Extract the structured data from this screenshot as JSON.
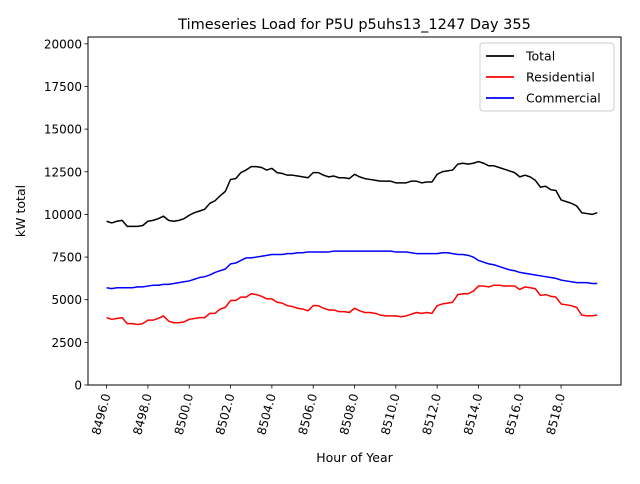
{
  "chart_data": {
    "type": "line",
    "title": "Timeseries Load for P5U p5uhs13_1247  Day 355",
    "xlabel": "Hour of Year",
    "ylabel": "kW total",
    "xlim": [
      8495.1,
      8520.9
    ],
    "ylim": [
      0,
      20400
    ],
    "x_ticks": [
      8496,
      8498,
      8500,
      8502,
      8504,
      8506,
      8508,
      8510,
      8512,
      8514,
      8516,
      8518
    ],
    "x_tick_labels": [
      "8496.0",
      "8498.0",
      "8500.0",
      "8502.0",
      "8504.0",
      "8506.0",
      "8508.0",
      "8510.0",
      "8512.0",
      "8514.0",
      "8516.0",
      "8518.0"
    ],
    "y_ticks": [
      0,
      2500,
      5000,
      7500,
      10000,
      12500,
      15000,
      17500,
      20000
    ],
    "y_tick_labels": [
      "0",
      "2500",
      "5000",
      "7500",
      "10000",
      "12500",
      "15000",
      "17500",
      "20000"
    ],
    "grid": false,
    "legend_position": "top-right",
    "x": [
      8496.0,
      8496.25,
      8496.5,
      8496.75,
      8497.0,
      8497.25,
      8497.5,
      8497.75,
      8498.0,
      8498.25,
      8498.5,
      8498.75,
      8499.0,
      8499.25,
      8499.5,
      8499.75,
      8500.0,
      8500.25,
      8500.5,
      8500.75,
      8501.0,
      8501.25,
      8501.5,
      8501.75,
      8502.0,
      8502.25,
      8502.5,
      8502.75,
      8503.0,
      8503.25,
      8503.5,
      8503.75,
      8504.0,
      8504.25,
      8504.5,
      8504.75,
      8505.0,
      8505.25,
      8505.5,
      8505.75,
      8506.0,
      8506.25,
      8506.5,
      8506.75,
      8507.0,
      8507.25,
      8507.5,
      8507.75,
      8508.0,
      8508.25,
      8508.5,
      8508.75,
      8509.0,
      8509.25,
      8509.5,
      8509.75,
      8510.0,
      8510.25,
      8510.5,
      8510.75,
      8511.0,
      8511.25,
      8511.5,
      8511.75,
      8512.0,
      8512.25,
      8512.5,
      8512.75,
      8513.0,
      8513.25,
      8513.5,
      8513.75,
      8514.0,
      8514.25,
      8514.5,
      8514.75,
      8515.0,
      8515.25,
      8515.5,
      8515.75,
      8516.0,
      8516.25,
      8516.5,
      8516.75,
      8517.0,
      8517.25,
      8517.5,
      8517.75,
      8518.0,
      8518.25,
      8518.5,
      8518.75,
      8519.0,
      8519.25,
      8519.5,
      8519.75
    ],
    "series": [
      {
        "name": "Total",
        "color": "#000000",
        "values": [
          9600,
          9500,
          9600,
          9650,
          9300,
          9300,
          9300,
          9350,
          9600,
          9650,
          9750,
          9900,
          9650,
          9600,
          9650,
          9750,
          9950,
          10100,
          10200,
          10300,
          10650,
          10800,
          11100,
          11350,
          12050,
          12100,
          12450,
          12600,
          12800,
          12800,
          12750,
          12600,
          12700,
          12450,
          12400,
          12300,
          12300,
          12250,
          12200,
          12150,
          12450,
          12450,
          12300,
          12200,
          12250,
          12150,
          12150,
          12100,
          12350,
          12200,
          12100,
          12050,
          12000,
          11950,
          11950,
          11950,
          11850,
          11850,
          11850,
          11950,
          11950,
          11850,
          11900,
          11900,
          12350,
          12500,
          12550,
          12600,
          12950,
          13000,
          12950,
          13000,
          13100,
          13000,
          12850,
          12850,
          12750,
          12650,
          12550,
          12450,
          12200,
          12300,
          12200,
          12000,
          11600,
          11650,
          11450,
          11400,
          10850,
          10750,
          10650,
          10500,
          10100,
          10050,
          10000,
          10100
        ]
      },
      {
        "name": "Residential",
        "color": "#ff0000",
        "values": [
          3950,
          3850,
          3900,
          3950,
          3600,
          3600,
          3550,
          3600,
          3800,
          3800,
          3900,
          4050,
          3750,
          3650,
          3650,
          3700,
          3850,
          3900,
          3950,
          3950,
          4200,
          4200,
          4450,
          4550,
          4950,
          4950,
          5150,
          5150,
          5350,
          5300,
          5200,
          5050,
          5050,
          4850,
          4800,
          4650,
          4600,
          4500,
          4450,
          4350,
          4650,
          4650,
          4500,
          4400,
          4400,
          4300,
          4300,
          4250,
          4500,
          4350,
          4250,
          4250,
          4200,
          4100,
          4050,
          4050,
          4050,
          4000,
          4050,
          4150,
          4250,
          4200,
          4250,
          4200,
          4650,
          4750,
          4800,
          4850,
          5300,
          5350,
          5350,
          5500,
          5800,
          5800,
          5750,
          5850,
          5850,
          5800,
          5800,
          5800,
          5600,
          5750,
          5700,
          5650,
          5250,
          5300,
          5200,
          5150,
          4750,
          4700,
          4650,
          4550,
          4100,
          4050,
          4050,
          4100
        ]
      },
      {
        "name": "Commercial",
        "color": "#0000ff",
        "values": [
          5700,
          5650,
          5700,
          5700,
          5700,
          5700,
          5750,
          5750,
          5800,
          5850,
          5850,
          5900,
          5900,
          5950,
          6000,
          6050,
          6100,
          6200,
          6300,
          6350,
          6450,
          6600,
          6700,
          6800,
          7100,
          7150,
          7300,
          7450,
          7450,
          7500,
          7550,
          7600,
          7650,
          7650,
          7650,
          7700,
          7700,
          7750,
          7750,
          7800,
          7800,
          7800,
          7800,
          7800,
          7850,
          7850,
          7850,
          7850,
          7850,
          7850,
          7850,
          7850,
          7850,
          7850,
          7850,
          7850,
          7800,
          7800,
          7800,
          7750,
          7700,
          7700,
          7700,
          7700,
          7700,
          7750,
          7750,
          7700,
          7650,
          7650,
          7600,
          7500,
          7300,
          7200,
          7100,
          7050,
          6950,
          6850,
          6750,
          6700,
          6600,
          6550,
          6500,
          6450,
          6400,
          6350,
          6300,
          6250,
          6150,
          6100,
          6050,
          6000,
          6000,
          6000,
          5950,
          5950
        ]
      }
    ]
  }
}
